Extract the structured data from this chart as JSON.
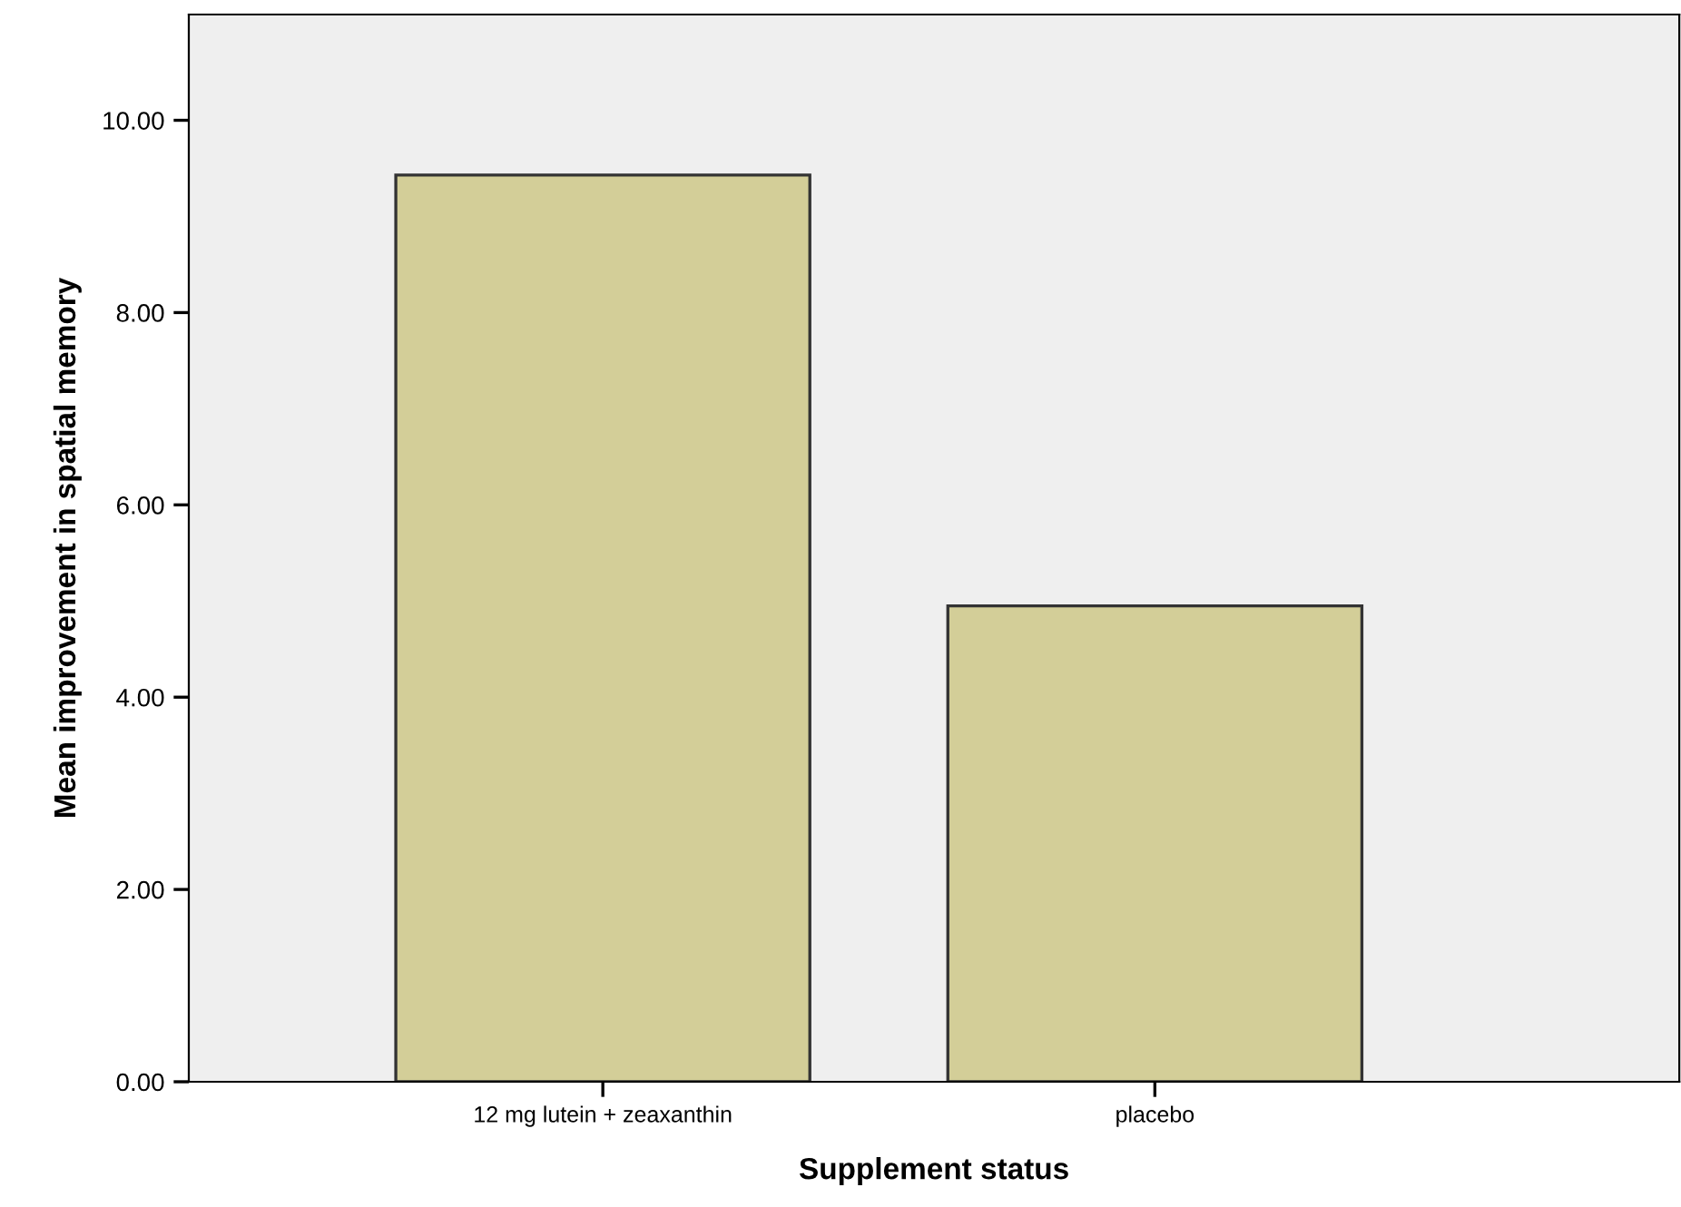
{
  "chart_data": {
    "type": "bar",
    "xlabel": "Supplement status",
    "ylabel": "Mean improvement in spatial memory",
    "categories": [
      "12 mg lutein + zeaxanthin",
      "placebo"
    ],
    "values": [
      9.43,
      4.95
    ],
    "color": "#d3ce98",
    "ylim": [
      0,
      11.1
    ],
    "yticks": [
      {
        "value": 0,
        "label": "0.00"
      },
      {
        "value": 2,
        "label": "2.00"
      },
      {
        "value": 4,
        "label": "4.00"
      },
      {
        "value": 6,
        "label": "6.00"
      },
      {
        "value": 8,
        "label": "8.00"
      },
      {
        "value": 10,
        "label": "10.00"
      }
    ],
    "grid": false
  }
}
